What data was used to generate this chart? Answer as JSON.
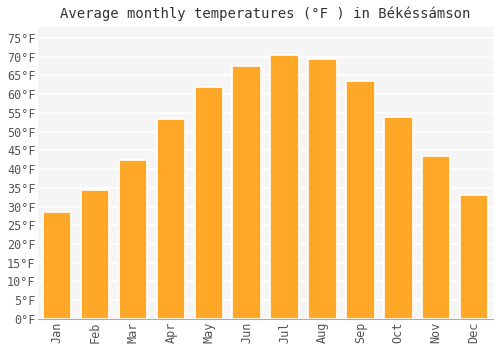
{
  "title": "Average monthly temperatures (°F ) in Békéssámson",
  "months": [
    "Jan",
    "Feb",
    "Mar",
    "Apr",
    "May",
    "Jun",
    "Jul",
    "Aug",
    "Sep",
    "Oct",
    "Nov",
    "Dec"
  ],
  "values": [
    28.5,
    34.5,
    42.5,
    53.5,
    62.0,
    67.5,
    70.5,
    69.5,
    63.5,
    54.0,
    43.5,
    33.0
  ],
  "bar_color": "#FFA726",
  "bar_edge_color": "#ffffff",
  "background_color": "#ffffff",
  "plot_bg_color": "#f5f5f5",
  "ylim": [
    0,
    78
  ],
  "yticks": [
    0,
    5,
    10,
    15,
    20,
    25,
    30,
    35,
    40,
    45,
    50,
    55,
    60,
    65,
    70,
    75
  ],
  "grid_color": "#ffffff",
  "title_fontsize": 10,
  "tick_fontsize": 8.5
}
